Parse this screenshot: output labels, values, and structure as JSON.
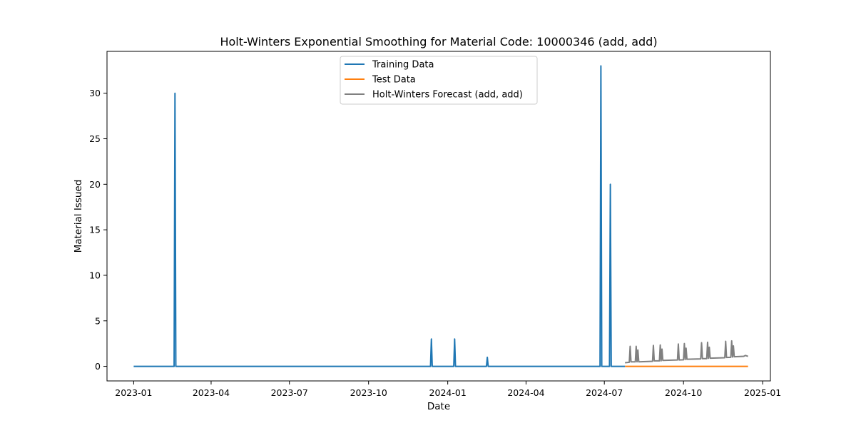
{
  "chart_data": {
    "type": "line",
    "title": "Holt-Winters Exponential Smoothing for Material Code: 10000346 (add, add)",
    "xlabel": "Date",
    "ylabel": "Material Issued",
    "xlim": [
      "2022-12-01",
      "2025-01-10"
    ],
    "ylim": [
      -1.6,
      34.6
    ],
    "x_ticks": [
      "2023-01",
      "2023-04",
      "2023-07",
      "2023-10",
      "2024-01",
      "2024-04",
      "2024-07",
      "2024-10",
      "2025-01"
    ],
    "y_ticks": [
      0,
      5,
      10,
      15,
      20,
      25,
      30
    ],
    "legend_position": "top-center",
    "grid": false,
    "series": [
      {
        "name": "Training Data",
        "color": "#1f77b4",
        "points": [
          [
            "2023-01-01",
            0
          ],
          [
            "2023-02-17",
            0
          ],
          [
            "2023-02-18",
            30
          ],
          [
            "2023-02-19",
            0
          ],
          [
            "2023-12-12",
            0
          ],
          [
            "2023-12-13",
            3
          ],
          [
            "2023-12-14",
            0
          ],
          [
            "2024-01-08",
            0
          ],
          [
            "2024-01-09",
            3
          ],
          [
            "2024-01-10",
            0
          ],
          [
            "2024-02-15",
            0
          ],
          [
            "2024-02-16",
            1
          ],
          [
            "2024-02-17",
            0
          ],
          [
            "2024-06-26",
            0
          ],
          [
            "2024-06-27",
            33
          ],
          [
            "2024-06-28",
            0
          ],
          [
            "2024-07-07",
            0
          ],
          [
            "2024-07-08",
            20
          ],
          [
            "2024-07-09",
            0
          ],
          [
            "2024-07-25",
            0
          ]
        ]
      },
      {
        "name": "Test Data",
        "color": "#ff7f0e",
        "points": [
          [
            "2024-07-25",
            0
          ],
          [
            "2024-12-15",
            0
          ]
        ]
      },
      {
        "name": "Holt-Winters Forecast (add, add)",
        "color": "#808080",
        "points": [
          [
            "2024-07-25",
            0.4
          ],
          [
            "2024-07-30",
            0.45
          ],
          [
            "2024-07-31",
            2.2
          ],
          [
            "2024-08-01",
            0.5
          ],
          [
            "2024-08-06",
            0.5
          ],
          [
            "2024-08-07",
            2.2
          ],
          [
            "2024-08-08",
            0.5
          ],
          [
            "2024-08-09",
            1.8
          ],
          [
            "2024-08-10",
            0.5
          ],
          [
            "2024-08-26",
            0.55
          ],
          [
            "2024-08-27",
            2.3
          ],
          [
            "2024-08-28",
            0.6
          ],
          [
            "2024-09-03",
            0.6
          ],
          [
            "2024-09-04",
            2.35
          ],
          [
            "2024-09-05",
            0.6
          ],
          [
            "2024-09-06",
            1.9
          ],
          [
            "2024-09-07",
            0.65
          ],
          [
            "2024-09-24",
            0.7
          ],
          [
            "2024-09-25",
            2.45
          ],
          [
            "2024-09-26",
            0.7
          ],
          [
            "2024-10-01",
            0.72
          ],
          [
            "2024-10-02",
            2.5
          ],
          [
            "2024-10-03",
            0.75
          ],
          [
            "2024-10-04",
            2.0
          ],
          [
            "2024-10-05",
            0.78
          ],
          [
            "2024-10-21",
            0.82
          ],
          [
            "2024-10-22",
            2.6
          ],
          [
            "2024-10-23",
            0.85
          ],
          [
            "2024-10-28",
            0.85
          ],
          [
            "2024-10-29",
            2.65
          ],
          [
            "2024-10-30",
            0.88
          ],
          [
            "2024-10-31",
            2.1
          ],
          [
            "2024-11-01",
            0.9
          ],
          [
            "2024-11-18",
            0.95
          ],
          [
            "2024-11-19",
            2.75
          ],
          [
            "2024-11-20",
            0.98
          ],
          [
            "2024-11-25",
            1.0
          ],
          [
            "2024-11-26",
            2.8
          ],
          [
            "2024-11-27",
            1.02
          ],
          [
            "2024-11-28",
            2.25
          ],
          [
            "2024-11-29",
            1.05
          ],
          [
            "2024-12-10",
            1.1
          ],
          [
            "2024-12-12",
            1.2
          ],
          [
            "2024-12-15",
            1.1
          ]
        ]
      }
    ]
  }
}
